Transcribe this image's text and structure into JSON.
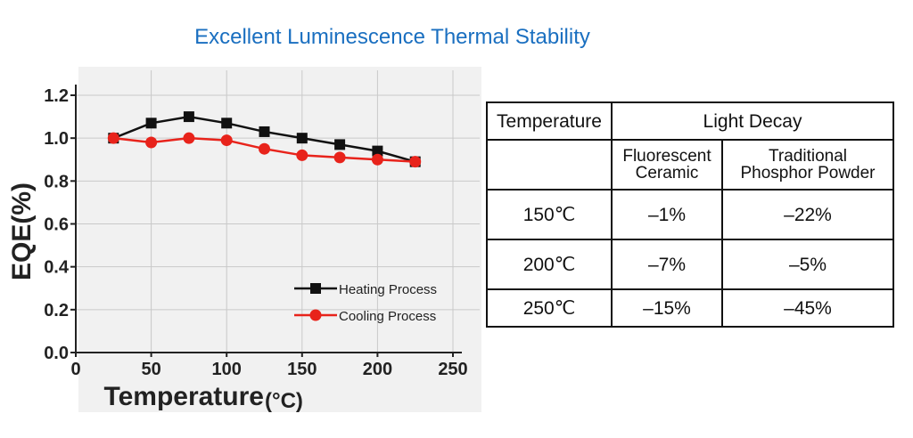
{
  "header": {
    "title": "Excellent Luminescence Thermal Stability"
  },
  "chart_data": {
    "type": "line",
    "xlabel": "Temperature",
    "xlabel_unit": "(°C)",
    "ylabel": "EQE(%)",
    "xlim": [
      0,
      250
    ],
    "ylim": [
      0,
      1.2
    ],
    "x_ticks": [
      "0",
      "50",
      "100",
      "150",
      "200",
      "250"
    ],
    "y_ticks": [
      "0.0",
      "0.2",
      "0.4",
      "0.6",
      "0.8",
      "1.0",
      "1.2"
    ],
    "grid": true,
    "legend_position": "bottom-right",
    "series": [
      {
        "name": "Heating Process",
        "color": "#111111",
        "marker": "square",
        "x": [
          25,
          50,
          75,
          100,
          125,
          150,
          175,
          200,
          225
        ],
        "y": [
          1.0,
          1.07,
          1.1,
          1.07,
          1.03,
          1.0,
          0.97,
          0.94,
          0.89
        ]
      },
      {
        "name": "Cooling Process",
        "color": "#e8231b",
        "marker": "circle",
        "x": [
          25,
          50,
          75,
          100,
          125,
          150,
          175,
          200,
          225
        ],
        "y": [
          1.0,
          0.98,
          1.0,
          0.99,
          0.95,
          0.92,
          0.91,
          0.9,
          0.89
        ]
      }
    ]
  },
  "table": {
    "header_temperature": "Temperature",
    "header_light_decay": "Light Decay",
    "col_ceramic_line1": "Fluorescent",
    "col_ceramic_line2": "Ceramic",
    "col_powder_line1": "Traditional",
    "col_powder_line2": "Phosphor Powder",
    "rows": [
      {
        "temperature": "150℃",
        "ceramic": "–1%",
        "powder": "–22%"
      },
      {
        "temperature": "200℃",
        "ceramic": "–7%",
        "powder": "–5%"
      },
      {
        "temperature": "250℃",
        "ceramic": "–15%",
        "powder": "–45%"
      }
    ]
  }
}
